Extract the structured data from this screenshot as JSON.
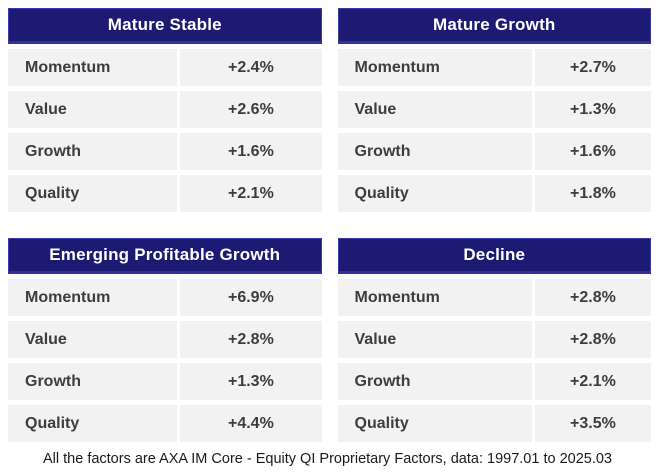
{
  "colors": {
    "header_bg": "#1c1a72",
    "header_border": "#34319b",
    "header_text": "#ffffff",
    "row_bg": "#f2f2f2",
    "row_text": "#3d3d3d",
    "footer_text": "#1a1a1a"
  },
  "tables": [
    {
      "title": "Mature Stable",
      "rows": [
        {
          "label": "Momentum",
          "value": "+2.4%"
        },
        {
          "label": "Value",
          "value": "+2.6%"
        },
        {
          "label": "Growth",
          "value": "+1.6%"
        },
        {
          "label": "Quality",
          "value": "+2.1%"
        }
      ]
    },
    {
      "title": "Mature Growth",
      "rows": [
        {
          "label": "Momentum",
          "value": "+2.7%"
        },
        {
          "label": "Value",
          "value": "+1.3%"
        },
        {
          "label": "Growth",
          "value": "+1.6%"
        },
        {
          "label": "Quality",
          "value": "+1.8%"
        }
      ]
    },
    {
      "title": "Emerging Profitable Growth",
      "rows": [
        {
          "label": "Momentum",
          "value": "+6.9%"
        },
        {
          "label": "Value",
          "value": "+2.8%"
        },
        {
          "label": "Growth",
          "value": "+1.3%"
        },
        {
          "label": "Quality",
          "value": "+4.4%"
        }
      ]
    },
    {
      "title": "Decline",
      "rows": [
        {
          "label": "Momentum",
          "value": "+2.8%"
        },
        {
          "label": "Value",
          "value": "+2.8%"
        },
        {
          "label": "Growth",
          "value": "+2.1%"
        },
        {
          "label": "Quality",
          "value": "+3.5%"
        }
      ]
    }
  ],
  "footer": "All the factors are AXA IM Core - Equity QI Proprietary Factors, data: 1997.01 to 2025.03",
  "chart_data": {
    "type": "table",
    "tables": [
      {
        "title": "Mature Stable",
        "categories": [
          "Momentum",
          "Value",
          "Growth",
          "Quality"
        ],
        "values_pct": [
          2.4,
          2.6,
          1.6,
          2.1
        ]
      },
      {
        "title": "Mature Growth",
        "categories": [
          "Momentum",
          "Value",
          "Growth",
          "Quality"
        ],
        "values_pct": [
          2.7,
          1.3,
          1.6,
          1.8
        ]
      },
      {
        "title": "Emerging Profitable Growth",
        "categories": [
          "Momentum",
          "Value",
          "Growth",
          "Quality"
        ],
        "values_pct": [
          6.9,
          2.8,
          1.3,
          4.4
        ]
      },
      {
        "title": "Decline",
        "categories": [
          "Momentum",
          "Value",
          "Growth",
          "Quality"
        ],
        "values_pct": [
          2.8,
          2.8,
          2.1,
          3.5
        ]
      }
    ],
    "footnote": "All the factors are AXA IM Core - Equity QI Proprietary Factors, data: 1997.01 to 2025.03"
  }
}
